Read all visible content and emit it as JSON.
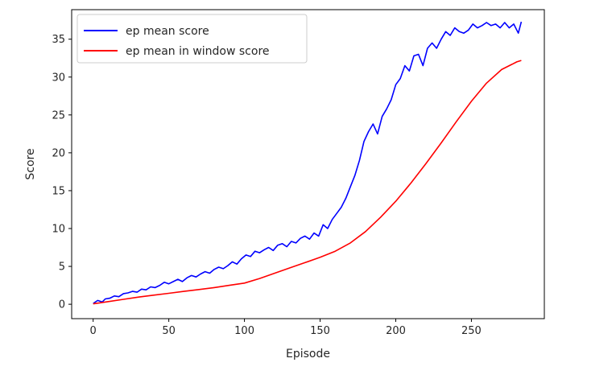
{
  "chart_data": {
    "type": "line",
    "title": "",
    "xlabel": "Episode",
    "ylabel": "Score",
    "xlim": [
      -14.2,
      298.2
    ],
    "ylim": [
      -1.9,
      38.9
    ],
    "xticks": [
      0,
      50,
      100,
      150,
      200,
      250
    ],
    "yticks": [
      0,
      5,
      10,
      15,
      20,
      25,
      30,
      35
    ],
    "grid": false,
    "legend_position": "top-left",
    "series": [
      {
        "name": "ep mean score",
        "color": "#0000ff",
        "x": [
          0,
          3,
          6,
          8,
          11,
          14,
          17,
          20,
          23,
          26,
          29,
          32,
          35,
          38,
          41,
          44,
          47,
          50,
          53,
          56,
          59,
          62,
          65,
          68,
          71,
          74,
          77,
          80,
          83,
          86,
          89,
          92,
          95,
          98,
          101,
          104,
          107,
          110,
          113,
          116,
          119,
          122,
          125,
          128,
          131,
          134,
          137,
          140,
          143,
          146,
          149,
          152,
          155,
          158,
          161,
          164,
          167,
          170,
          173,
          176,
          179,
          182,
          185,
          188,
          191,
          194,
          197,
          200,
          203,
          206,
          209,
          212,
          215,
          218,
          221,
          224,
          227,
          230,
          233,
          236,
          239,
          242,
          245,
          248,
          251,
          254,
          257,
          260,
          263,
          266,
          269,
          272,
          275,
          278,
          281,
          283
        ],
        "y": [
          0.1,
          0.5,
          0.3,
          0.7,
          0.8,
          1.1,
          1.0,
          1.4,
          1.5,
          1.7,
          1.6,
          2.0,
          1.9,
          2.3,
          2.2,
          2.5,
          2.9,
          2.7,
          3.0,
          3.3,
          3.0,
          3.5,
          3.8,
          3.6,
          4.0,
          4.3,
          4.1,
          4.6,
          4.9,
          4.7,
          5.1,
          5.6,
          5.3,
          6.0,
          6.5,
          6.3,
          7.0,
          6.8,
          7.2,
          7.5,
          7.1,
          7.8,
          8.0,
          7.6,
          8.3,
          8.1,
          8.7,
          9.0,
          8.6,
          9.4,
          9.0,
          10.5,
          10.0,
          11.2,
          12.0,
          12.8,
          14.0,
          15.5,
          17.0,
          19.0,
          21.5,
          22.8,
          23.8,
          22.5,
          24.8,
          25.8,
          27.0,
          29.0,
          29.8,
          31.5,
          30.8,
          32.8,
          33.0,
          31.5,
          33.8,
          34.5,
          33.8,
          35.0,
          36.0,
          35.5,
          36.5,
          36.0,
          35.8,
          36.2,
          37.0,
          36.5,
          36.8,
          37.2,
          36.8,
          37.0,
          36.5,
          37.2,
          36.5,
          37.0,
          35.8,
          37.3
        ]
      },
      {
        "name": "ep mean in window score",
        "color": "#ff0000",
        "x": [
          0,
          10,
          20,
          30,
          40,
          50,
          60,
          70,
          80,
          90,
          100,
          110,
          120,
          130,
          140,
          150,
          160,
          170,
          180,
          190,
          200,
          210,
          220,
          230,
          240,
          250,
          260,
          270,
          280,
          283
        ],
        "y": [
          0.05,
          0.35,
          0.65,
          0.95,
          1.2,
          1.45,
          1.7,
          1.95,
          2.2,
          2.5,
          2.8,
          3.4,
          4.1,
          4.8,
          5.5,
          6.2,
          7.0,
          8.1,
          9.6,
          11.5,
          13.6,
          16.0,
          18.6,
          21.3,
          24.1,
          26.8,
          29.2,
          31.0,
          32.0,
          32.2
        ]
      }
    ]
  }
}
